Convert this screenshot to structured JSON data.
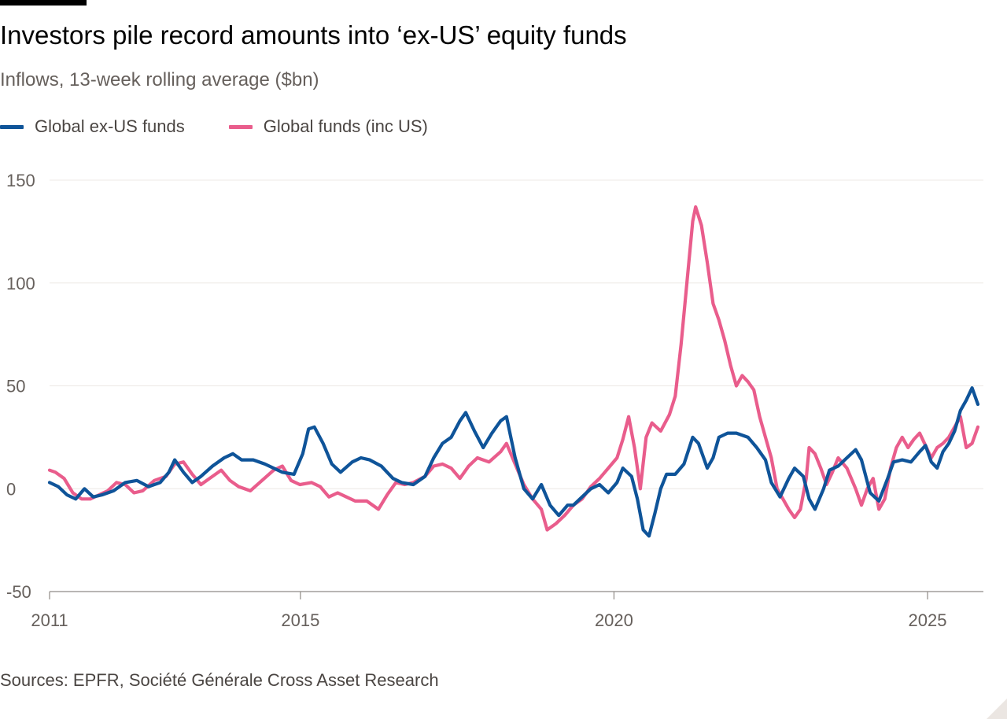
{
  "chart_data": {
    "type": "line",
    "title": "Investors pile record amounts into ‘ex-US’ equity funds",
    "subtitle": "Inflows, 13-week rolling average ($bn)",
    "xlabel": "",
    "ylabel": "",
    "xlim": [
      2011,
      2025.85
    ],
    "ylim": [
      -50,
      150
    ],
    "y_ticks": [
      150,
      100,
      50,
      0,
      -50
    ],
    "x_ticks": [
      2011,
      2015,
      2020,
      2025
    ],
    "grid": true,
    "legend_position": "top-left",
    "series": [
      {
        "name": "Global ex-US funds",
        "color": "#0f5499",
        "points": [
          [
            2011.0,
            3
          ],
          [
            2011.15,
            1
          ],
          [
            2011.3,
            -3
          ],
          [
            2011.45,
            -5
          ],
          [
            2011.6,
            0
          ],
          [
            2011.75,
            -4
          ],
          [
            2011.9,
            -3
          ],
          [
            2012.1,
            -1
          ],
          [
            2012.3,
            3
          ],
          [
            2012.5,
            4
          ],
          [
            2012.7,
            1
          ],
          [
            2012.9,
            3
          ],
          [
            2013.05,
            8
          ],
          [
            2013.15,
            14
          ],
          [
            2013.3,
            8
          ],
          [
            2013.45,
            3
          ],
          [
            2013.6,
            6
          ],
          [
            2013.8,
            11
          ],
          [
            2014.0,
            15
          ],
          [
            2014.15,
            17
          ],
          [
            2014.3,
            14
          ],
          [
            2014.5,
            14
          ],
          [
            2014.7,
            12
          ],
          [
            2014.85,
            10
          ],
          [
            2015.0,
            8
          ],
          [
            2015.2,
            7
          ],
          [
            2015.35,
            17
          ],
          [
            2015.45,
            29
          ],
          [
            2015.55,
            30
          ],
          [
            2015.7,
            22
          ],
          [
            2015.85,
            12
          ],
          [
            2016.0,
            8
          ],
          [
            2016.2,
            13
          ],
          [
            2016.35,
            15
          ],
          [
            2016.5,
            14
          ],
          [
            2016.7,
            11
          ],
          [
            2016.9,
            5
          ],
          [
            2017.05,
            3
          ],
          [
            2017.25,
            2
          ],
          [
            2017.45,
            6
          ],
          [
            2017.6,
            15
          ],
          [
            2017.75,
            22
          ],
          [
            2017.9,
            25
          ],
          [
            2018.05,
            33
          ],
          [
            2018.15,
            37
          ],
          [
            2018.3,
            28
          ],
          [
            2018.45,
            20
          ],
          [
            2018.6,
            27
          ],
          [
            2018.75,
            33
          ],
          [
            2018.85,
            35
          ],
          [
            2019.0,
            15
          ],
          [
            2019.15,
            0
          ],
          [
            2019.3,
            -5
          ],
          [
            2019.45,
            2
          ],
          [
            2019.6,
            -8
          ],
          [
            2019.75,
            -13
          ],
          [
            2019.9,
            -8
          ],
          [
            2020.0,
            -8
          ],
          [
            2020.15,
            -4
          ],
          [
            2020.3,
            0
          ],
          [
            2020.45,
            2
          ],
          [
            2020.6,
            -2
          ],
          [
            2020.75,
            3
          ],
          [
            2020.85,
            10
          ],
          [
            2021.0,
            6
          ],
          [
            2021.1,
            -5
          ],
          [
            2021.2,
            -20
          ],
          [
            2021.3,
            -23
          ],
          [
            2021.4,
            -12
          ],
          [
            2021.5,
            0
          ],
          [
            2021.6,
            7
          ],
          [
            2021.75,
            7
          ],
          [
            2021.9,
            12
          ],
          [
            2022.05,
            25
          ],
          [
            2022.15,
            22
          ],
          [
            2022.3,
            10
          ],
          [
            2022.4,
            15
          ],
          [
            2022.5,
            25
          ],
          [
            2022.65,
            27
          ],
          [
            2022.8,
            27
          ],
          [
            2023.0,
            25
          ],
          [
            2023.15,
            20
          ],
          [
            2023.3,
            14
          ],
          [
            2023.4,
            3
          ],
          [
            2023.55,
            -4
          ],
          [
            2023.7,
            5
          ],
          [
            2023.8,
            10
          ],
          [
            2023.95,
            6
          ],
          [
            2024.05,
            -5
          ],
          [
            2024.15,
            -10
          ],
          [
            2024.3,
            0
          ],
          [
            2024.4,
            9
          ],
          [
            2024.55,
            11
          ],
          [
            2024.7,
            15
          ],
          [
            2024.85,
            19
          ],
          [
            2024.95,
            14
          ],
          [
            2025.1,
            -2
          ],
          [
            2025.25,
            -6
          ],
          [
            2025.4,
            5
          ],
          [
            2025.5,
            13
          ],
          [
            2025.65,
            14
          ],
          [
            2025.8,
            13
          ],
          [
            2025.95,
            18
          ],
          [
            2026.05,
            21
          ],
          [
            2026.15,
            13
          ],
          [
            2026.25,
            10
          ],
          [
            2026.35,
            18
          ],
          [
            2026.45,
            22
          ],
          [
            2026.55,
            28
          ],
          [
            2026.65,
            38
          ],
          [
            2026.75,
            43
          ],
          [
            2026.85,
            49
          ],
          [
            2026.95,
            41
          ]
        ]
      },
      {
        "name": "Global funds (inc US)",
        "color": "#e95d8c",
        "points": [
          [
            2011.0,
            9
          ],
          [
            2011.1,
            8
          ],
          [
            2011.25,
            5
          ],
          [
            2011.4,
            -2
          ],
          [
            2011.55,
            -5
          ],
          [
            2011.7,
            -5
          ],
          [
            2011.85,
            -3
          ],
          [
            2012.0,
            -1
          ],
          [
            2012.15,
            3
          ],
          [
            2012.3,
            2
          ],
          [
            2012.45,
            -2
          ],
          [
            2012.6,
            -1
          ],
          [
            2012.8,
            4
          ],
          [
            2013.0,
            6
          ],
          [
            2013.15,
            12
          ],
          [
            2013.3,
            13
          ],
          [
            2013.45,
            7
          ],
          [
            2013.6,
            2
          ],
          [
            2013.75,
            5
          ],
          [
            2013.95,
            9
          ],
          [
            2014.1,
            4
          ],
          [
            2014.25,
            1
          ],
          [
            2014.45,
            -1
          ],
          [
            2014.65,
            4
          ],
          [
            2014.85,
            9
          ],
          [
            2015.0,
            11
          ],
          [
            2015.15,
            4
          ],
          [
            2015.3,
            2
          ],
          [
            2015.5,
            3
          ],
          [
            2015.65,
            1
          ],
          [
            2015.8,
            -4
          ],
          [
            2015.95,
            -2
          ],
          [
            2016.1,
            -4
          ],
          [
            2016.25,
            -6
          ],
          [
            2016.45,
            -6
          ],
          [
            2016.65,
            -10
          ],
          [
            2016.8,
            -3
          ],
          [
            2016.95,
            3
          ],
          [
            2017.1,
            2
          ],
          [
            2017.25,
            3
          ],
          [
            2017.45,
            6
          ],
          [
            2017.6,
            11
          ],
          [
            2017.75,
            12
          ],
          [
            2017.9,
            10
          ],
          [
            2018.05,
            5
          ],
          [
            2018.2,
            11
          ],
          [
            2018.35,
            15
          ],
          [
            2018.55,
            13
          ],
          [
            2018.75,
            18
          ],
          [
            2018.85,
            22
          ],
          [
            2019.0,
            12
          ],
          [
            2019.15,
            2
          ],
          [
            2019.3,
            -5
          ],
          [
            2019.45,
            -10
          ],
          [
            2019.55,
            -20
          ],
          [
            2019.7,
            -17
          ],
          [
            2019.85,
            -13
          ],
          [
            2020.0,
            -8
          ],
          [
            2020.15,
            -5
          ],
          [
            2020.3,
            1
          ],
          [
            2020.45,
            5
          ],
          [
            2020.6,
            10
          ],
          [
            2020.75,
            15
          ],
          [
            2020.85,
            24
          ],
          [
            2020.95,
            35
          ],
          [
            2021.05,
            20
          ],
          [
            2021.1,
            10
          ],
          [
            2021.15,
            0
          ],
          [
            2021.25,
            25
          ],
          [
            2021.35,
            32
          ],
          [
            2021.5,
            28
          ],
          [
            2021.65,
            36
          ],
          [
            2021.75,
            45
          ],
          [
            2021.85,
            70
          ],
          [
            2021.95,
            100
          ],
          [
            2022.05,
            130
          ],
          [
            2022.1,
            137
          ],
          [
            2022.2,
            128
          ],
          [
            2022.3,
            110
          ],
          [
            2022.4,
            90
          ],
          [
            2022.5,
            82
          ],
          [
            2022.6,
            72
          ],
          [
            2022.7,
            60
          ],
          [
            2022.8,
            50
          ],
          [
            2022.9,
            55
          ],
          [
            2023.0,
            52
          ],
          [
            2023.1,
            48
          ],
          [
            2023.2,
            35
          ],
          [
            2023.3,
            25
          ],
          [
            2023.4,
            15
          ],
          [
            2023.5,
            0
          ],
          [
            2023.6,
            -5
          ],
          [
            2023.7,
            -10
          ],
          [
            2023.8,
            -14
          ],
          [
            2023.9,
            -10
          ],
          [
            2024.0,
            5
          ],
          [
            2024.05,
            20
          ],
          [
            2024.15,
            17
          ],
          [
            2024.25,
            10
          ],
          [
            2024.35,
            2
          ],
          [
            2024.45,
            8
          ],
          [
            2024.55,
            15
          ],
          [
            2024.7,
            10
          ],
          [
            2024.85,
            0
          ],
          [
            2024.95,
            -8
          ],
          [
            2025.05,
            0
          ],
          [
            2025.15,
            5
          ],
          [
            2025.25,
            -10
          ],
          [
            2025.35,
            -5
          ],
          [
            2025.45,
            10
          ],
          [
            2025.55,
            20
          ],
          [
            2025.65,
            25
          ],
          [
            2025.75,
            20
          ],
          [
            2025.85,
            24
          ],
          [
            2025.95,
            27
          ],
          [
            2026.05,
            21
          ],
          [
            2026.15,
            15
          ],
          [
            2026.25,
            20
          ],
          [
            2026.35,
            22
          ],
          [
            2026.45,
            25
          ],
          [
            2026.55,
            30
          ],
          [
            2026.65,
            35
          ],
          [
            2026.75,
            20
          ],
          [
            2026.85,
            22
          ],
          [
            2026.95,
            30
          ]
        ]
      }
    ]
  },
  "legend": {
    "items": [
      {
        "label": "Global ex-US funds",
        "color": "#0f5499"
      },
      {
        "label": "Global funds (inc US)",
        "color": "#e95d8c"
      }
    ]
  },
  "source": "Sources: EPFR, Société Générale Cross Asset Research"
}
